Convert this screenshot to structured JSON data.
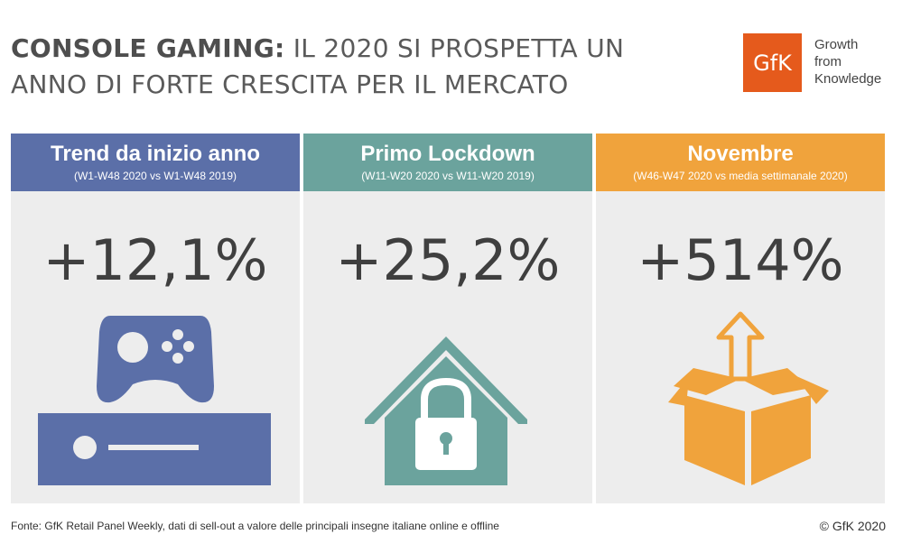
{
  "header": {
    "title_bold": "CONSOLE GAMING:",
    "title_rest_line1": "IL 2020 SI PROSPETTA UN",
    "title_line2": "ANNO DI FORTE CRESCITA PER IL MERCATO"
  },
  "logo": {
    "mark": "GfK",
    "tagline_1": "Growth",
    "tagline_2": "from",
    "tagline_3": "Knowledge",
    "color": "#e55a1c"
  },
  "cards": [
    {
      "title": "Trend da inizio anno",
      "subtitle": "(W1-W48 2020 vs W1-W48 2019)",
      "value": "+12,1%",
      "icon": "game-console-icon",
      "color": "#5b6fa8"
    },
    {
      "title": "Primo Lockdown",
      "subtitle": "(W11-W20 2020 vs W11-W20 2019)",
      "value": "+25,2%",
      "icon": "house-lock-icon",
      "color": "#6ba39d"
    },
    {
      "title": "Novembre",
      "subtitle": "(W46-W47 2020 vs media settimanale 2020)",
      "value": "+514%",
      "icon": "open-box-arrow-icon",
      "color": "#f0a33c"
    }
  ],
  "footer": {
    "source": "Fonte: GfK Retail Panel Weekly, dati di sell-out a valore delle principali insegne italiane online e offline",
    "copyright": "© GfK 2020"
  }
}
